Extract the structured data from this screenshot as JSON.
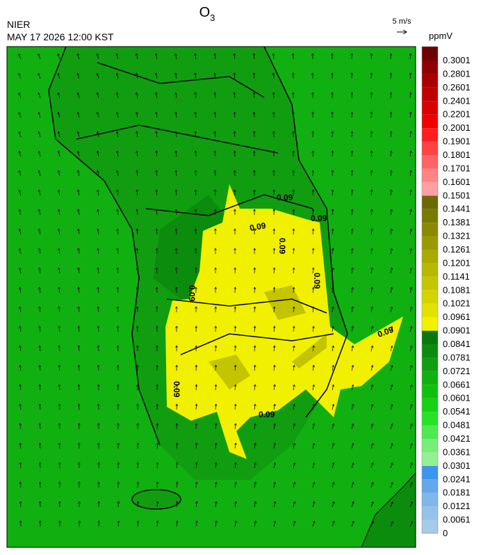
{
  "header": {
    "title": "O",
    "title_subscript": "3",
    "agency": "NIER",
    "timestamp": "MAY 17 2026 12:00 KST"
  },
  "wind_reference": {
    "label": "5 m/s"
  },
  "colorbar": {
    "unit": "ppmV",
    "labels": [
      "0",
      "0.0061",
      "0.0121",
      "0.0181",
      "0.0241",
      "0.0301",
      "0.0361",
      "0.0421",
      "0.0481",
      "0.0541",
      "0.0601",
      "0.0661",
      "0.0721",
      "0.0781",
      "0.0841",
      "0.0901",
      "0.0961",
      "0.1021",
      "0.1081",
      "0.1141",
      "0.1201",
      "0.1261",
      "0.1321",
      "0.1381",
      "0.1441",
      "0.1501",
      "0.1601",
      "0.1701",
      "0.1801",
      "0.1901",
      "0.2001",
      "0.2201",
      "0.2401",
      "0.2601",
      "0.2801",
      "0.3001"
    ],
    "colors": [
      "#a6cbe8",
      "#94c2ec",
      "#80b6ec",
      "#64a8ec",
      "#3c96f0",
      "#94f094",
      "#78ee78",
      "#50ea50",
      "#28e228",
      "#14d214",
      "#10c010",
      "#10b010",
      "#109e10",
      "#0c8c0c",
      "#0a780a",
      "#f2f200",
      "#e2e200",
      "#d4d400",
      "#c6c600",
      "#b8b800",
      "#aaaa00",
      "#9a9a00",
      "#8a8a00",
      "#7a7a00",
      "#6a6a00",
      "#ffa0a0",
      "#ff8484",
      "#ff6464",
      "#ff4444",
      "#ff1e1e",
      "#f00000",
      "#d80000",
      "#c00000",
      "#a80000",
      "#900000",
      "#6e0000"
    ]
  },
  "map": {
    "contour_labels": [
      "0.09",
      "0.09",
      "0.09",
      "0.09",
      "0.09",
      "0.09",
      "0.09",
      "0.09",
      "0.09"
    ]
  }
}
